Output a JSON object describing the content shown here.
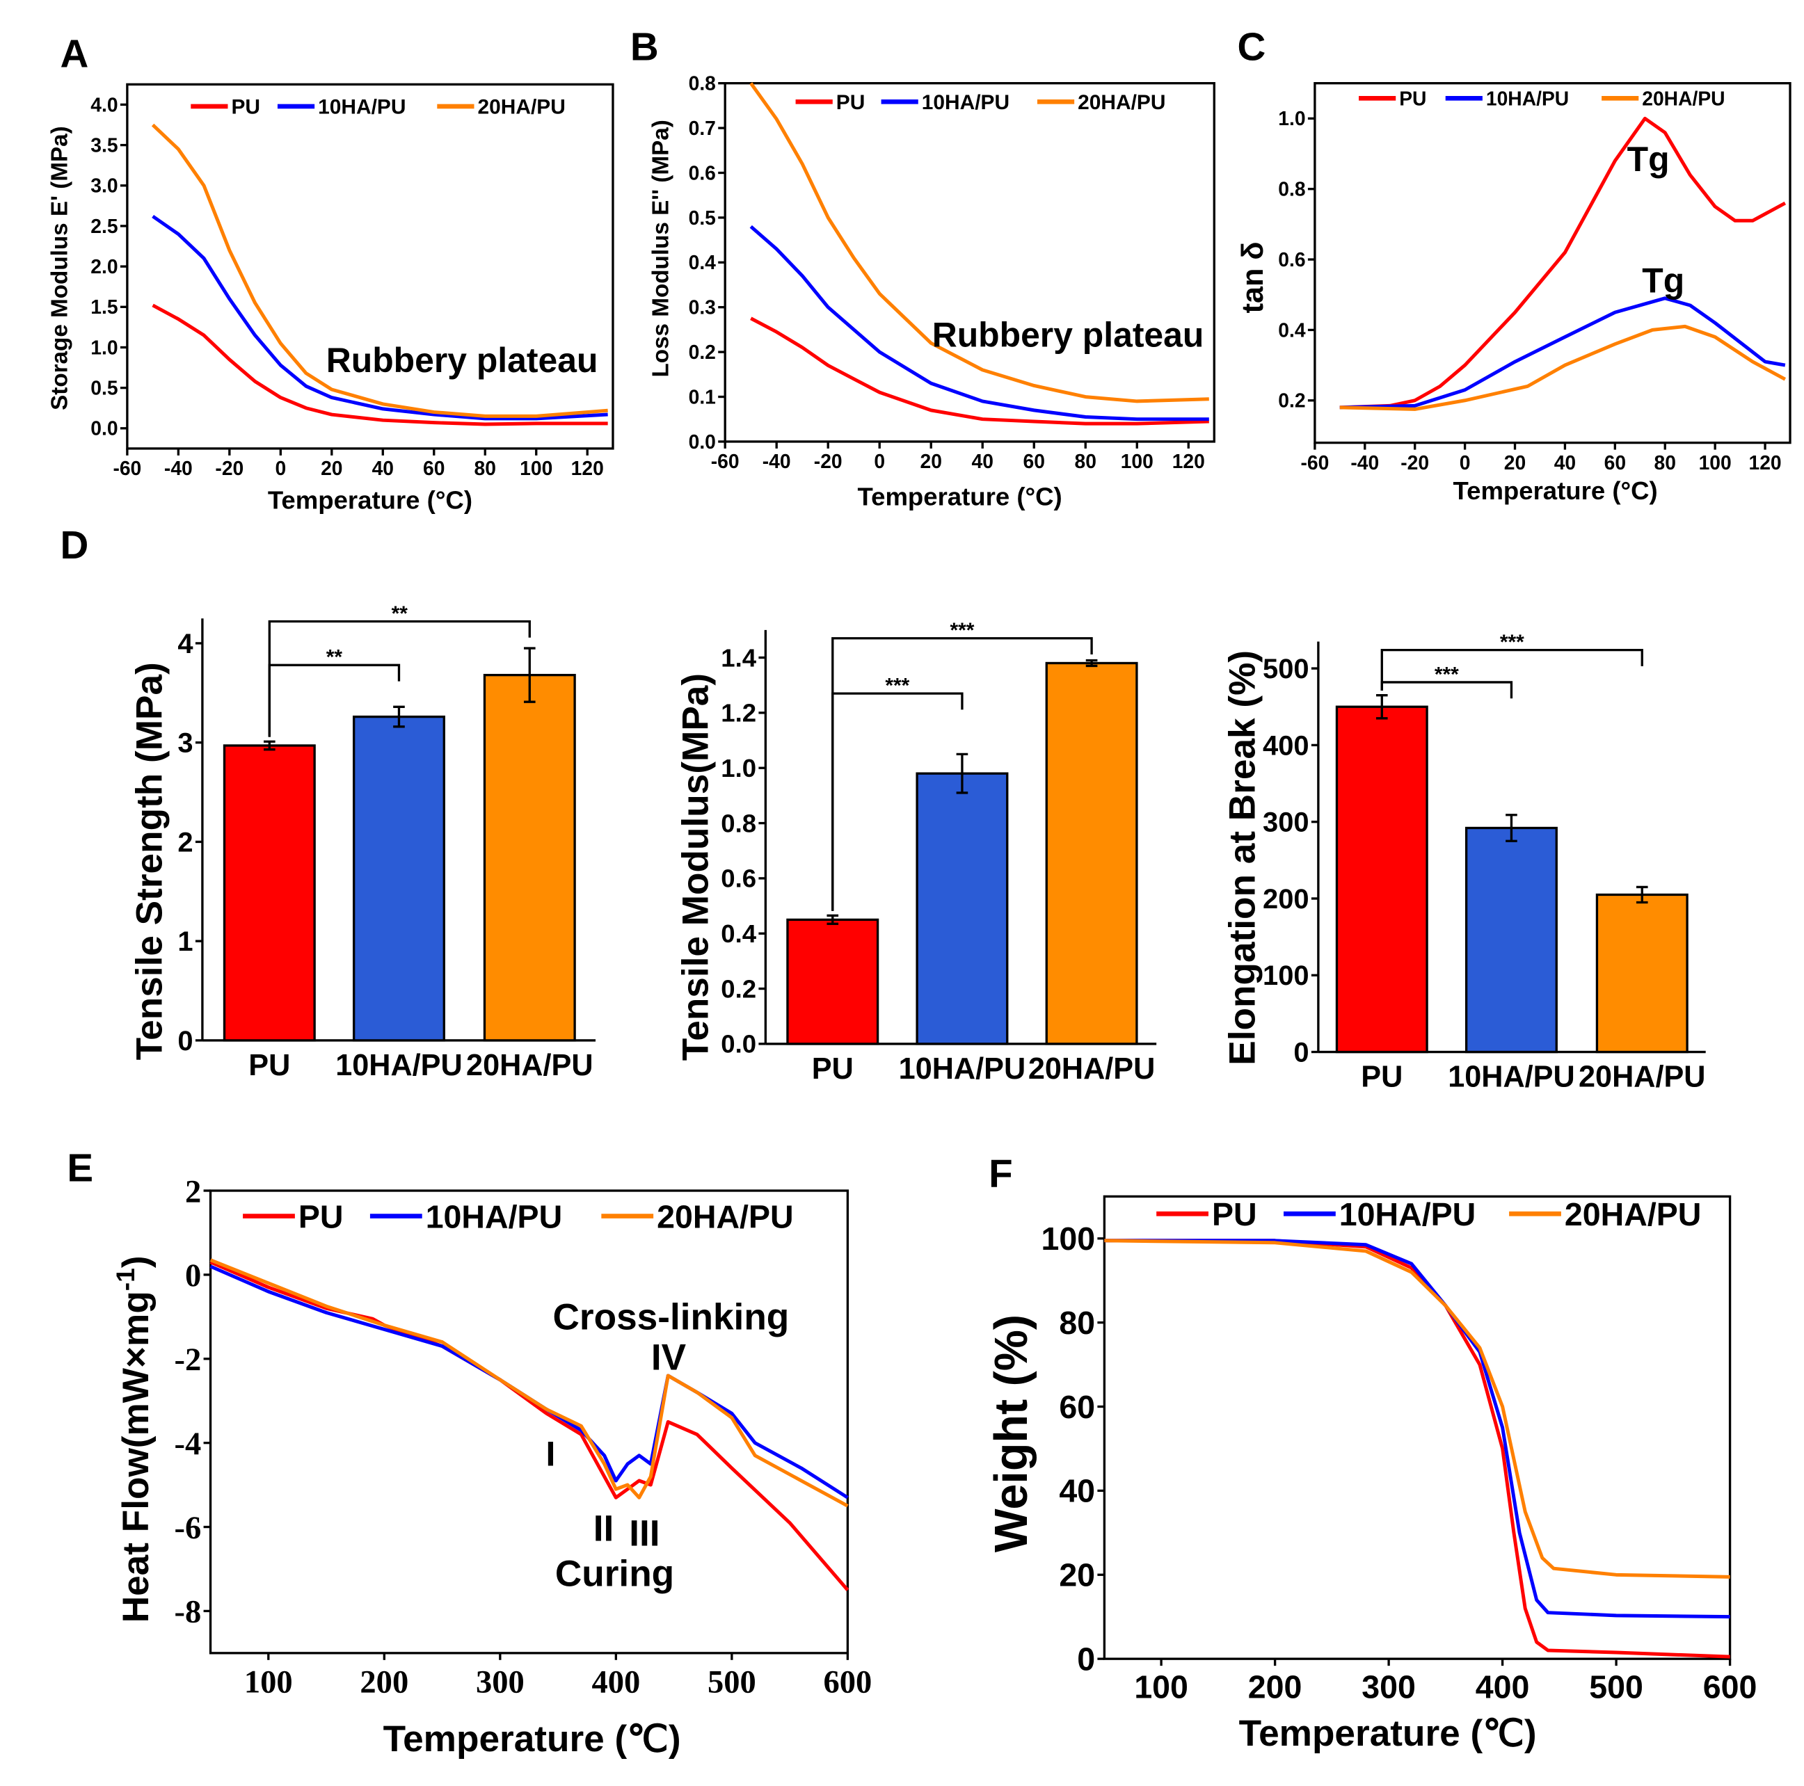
{
  "panel_labels": [
    "A",
    "B",
    "C",
    "D",
    "E",
    "F"
  ],
  "colors": {
    "PU": "#ff0000",
    "10HA/PU": "#0000ff",
    "20HA/PU": "#ff8000",
    "bar_PU": "#ff0000",
    "bar_10HA/PU": "#2b5cd6",
    "bar_20HA/PU": "#ff8c00"
  },
  "chart_data": [
    {
      "panel": "A",
      "type": "line",
      "xlabel": "Temperature (°C)",
      "ylabel": "Storage Modulus E' (MPa)",
      "xlim": [
        -60,
        130
      ],
      "ylim": [
        -0.25,
        4.25
      ],
      "xticks": [
        -60,
        -40,
        -20,
        0,
        20,
        40,
        60,
        80,
        100,
        120
      ],
      "xtick_labels": [
        "-60",
        "-40",
        "-20",
        "0",
        "20",
        "40",
        "60",
        "80",
        "100",
        "120"
      ],
      "yticks": [
        0,
        0.5,
        1,
        1.5,
        2,
        2.5,
        3,
        3.5,
        4
      ],
      "ytick_labels": [
        "0.0",
        "0.5",
        "1.0",
        "1.5",
        "2.0",
        "2.5",
        "3.0",
        "3.5",
        "4.0"
      ],
      "legend": "top",
      "grid": false,
      "annotations": [
        "Rubbery plateau"
      ],
      "series": [
        {
          "name": "PU",
          "x": [
            -50,
            -40,
            -30,
            -20,
            -10,
            0,
            10,
            20,
            40,
            60,
            80,
            100,
            128
          ],
          "y": [
            1.52,
            1.35,
            1.15,
            0.85,
            0.58,
            0.38,
            0.25,
            0.17,
            0.1,
            0.07,
            0.05,
            0.06,
            0.06
          ]
        },
        {
          "name": "10HA/PU",
          "x": [
            -50,
            -40,
            -30,
            -20,
            -10,
            0,
            10,
            20,
            40,
            60,
            80,
            100,
            128
          ],
          "y": [
            2.62,
            2.4,
            2.1,
            1.6,
            1.15,
            0.78,
            0.52,
            0.38,
            0.24,
            0.17,
            0.12,
            0.12,
            0.17
          ]
        },
        {
          "name": "20HA/PU",
          "x": [
            -50,
            -40,
            -30,
            -20,
            -10,
            0,
            10,
            20,
            40,
            60,
            80,
            100,
            128
          ],
          "y": [
            3.75,
            3.45,
            3.0,
            2.2,
            1.55,
            1.05,
            0.68,
            0.48,
            0.3,
            0.2,
            0.15,
            0.15,
            0.22
          ]
        }
      ]
    },
    {
      "panel": "B",
      "type": "line",
      "xlabel": "Temperature (°C)",
      "ylabel": "Loss Modulus E'' (MPa)",
      "xlim": [
        -60,
        130
      ],
      "ylim": [
        0,
        0.8
      ],
      "xticks": [
        -60,
        -40,
        -20,
        0,
        20,
        40,
        60,
        80,
        100,
        120
      ],
      "xtick_labels": [
        "-60",
        "-40",
        "-20",
        "0",
        "20",
        "40",
        "60",
        "80",
        "100",
        "120"
      ],
      "yticks": [
        0,
        0.1,
        0.2,
        0.3,
        0.4,
        0.5,
        0.6,
        0.7,
        0.8
      ],
      "ytick_labels": [
        "0.0",
        "0.1",
        "0.2",
        "0.3",
        "0.4",
        "0.5",
        "0.6",
        "0.7",
        "0.8"
      ],
      "legend": "top",
      "grid": false,
      "annotations": [
        "Rubbery plateau"
      ],
      "series": [
        {
          "name": "PU",
          "x": [
            -50,
            -40,
            -30,
            -20,
            -10,
            0,
            20,
            40,
            60,
            80,
            100,
            128
          ],
          "y": [
            0.275,
            0.245,
            0.21,
            0.17,
            0.14,
            0.11,
            0.07,
            0.05,
            0.045,
            0.04,
            0.04,
            0.045
          ]
        },
        {
          "name": "10HA/PU",
          "x": [
            -50,
            -40,
            -30,
            -20,
            -10,
            0,
            20,
            40,
            60,
            80,
            100,
            128
          ],
          "y": [
            0.48,
            0.43,
            0.37,
            0.3,
            0.25,
            0.2,
            0.13,
            0.09,
            0.07,
            0.055,
            0.05,
            0.05
          ]
        },
        {
          "name": "20HA/PU",
          "x": [
            -50,
            -40,
            -30,
            -20,
            -10,
            0,
            20,
            40,
            60,
            80,
            100,
            128
          ],
          "y": [
            0.8,
            0.72,
            0.62,
            0.5,
            0.41,
            0.33,
            0.22,
            0.16,
            0.125,
            0.1,
            0.09,
            0.095
          ]
        }
      ]
    },
    {
      "panel": "C",
      "type": "line",
      "xlabel": "Temperature (°C)",
      "ylabel": "tan δ",
      "xlim": [
        -60,
        130
      ],
      "ylim": [
        0.08,
        1.1
      ],
      "xticks": [
        -60,
        -40,
        -20,
        0,
        20,
        40,
        60,
        80,
        100,
        120
      ],
      "xtick_labels": [
        "-60",
        "-40",
        "-20",
        "0",
        "20",
        "40",
        "60",
        "80",
        "100",
        "120"
      ],
      "yticks": [
        0.2,
        0.4,
        0.6,
        0.8,
        1.0
      ],
      "ytick_labels": [
        "0.2",
        "0.4",
        "0.6",
        "0.8",
        "1.0"
      ],
      "legend": "top",
      "grid": false,
      "annotations": [
        "Tg",
        "Tg"
      ],
      "series": [
        {
          "name": "PU",
          "x": [
            -50,
            -30,
            -20,
            -10,
            0,
            20,
            40,
            60,
            72,
            80,
            90,
            100,
            108,
            115,
            128
          ],
          "y": [
            0.18,
            0.185,
            0.2,
            0.24,
            0.3,
            0.45,
            0.62,
            0.88,
            1.0,
            0.96,
            0.84,
            0.75,
            0.71,
            0.71,
            0.76
          ]
        },
        {
          "name": "10HA/PU",
          "x": [
            -50,
            -20,
            0,
            20,
            40,
            60,
            80,
            90,
            100,
            120,
            128
          ],
          "y": [
            0.18,
            0.185,
            0.23,
            0.31,
            0.38,
            0.45,
            0.49,
            0.47,
            0.42,
            0.31,
            0.3
          ]
        },
        {
          "name": "20HA/PU",
          "x": [
            -50,
            -20,
            0,
            25,
            40,
            60,
            75,
            88,
            100,
            115,
            128
          ],
          "y": [
            0.18,
            0.175,
            0.2,
            0.24,
            0.3,
            0.36,
            0.4,
            0.41,
            0.38,
            0.31,
            0.26
          ]
        }
      ]
    },
    {
      "panel": "D",
      "type": "bar",
      "ylabel": "Tensile Strength (MPa)",
      "ylim": [
        0,
        4.25
      ],
      "yticks": [
        0,
        1,
        2,
        3,
        4
      ],
      "ytick_labels": [
        "0",
        "1",
        "2",
        "3",
        "4"
      ],
      "categories": [
        "PU",
        "10HA/PU",
        "20HA/PU"
      ],
      "values": [
        2.97,
        3.26,
        3.68
      ],
      "errors": [
        0.04,
        0.1,
        0.27
      ],
      "significance": [
        {
          "from": 0,
          "to": 2,
          "label": "**",
          "level": 4.22
        },
        {
          "from": 0,
          "to": 1,
          "label": "**",
          "level": 3.78
        }
      ]
    },
    {
      "panel": "D",
      "type": "bar",
      "ylabel": "Tensile Modulus(MPa)",
      "ylim": [
        0,
        1.5
      ],
      "yticks": [
        0,
        0.2,
        0.4,
        0.6,
        0.8,
        1.0,
        1.2,
        1.4
      ],
      "ytick_labels": [
        "0.0",
        "0.2",
        "0.4",
        "0.6",
        "0.8",
        "1.0",
        "1.2",
        "1.4"
      ],
      "categories": [
        "PU",
        "10HA/PU",
        "20HA/PU"
      ],
      "values": [
        0.45,
        0.98,
        1.38
      ],
      "errors": [
        0.015,
        0.07,
        0.01
      ],
      "significance": [
        {
          "from": 0,
          "to": 2,
          "label": "***",
          "level": 1.47
        },
        {
          "from": 0,
          "to": 1,
          "label": "***",
          "level": 1.27
        }
      ]
    },
    {
      "panel": "D",
      "type": "bar",
      "ylabel": "Elongation at Break (%)",
      "ylim": [
        0,
        535
      ],
      "yticks": [
        0,
        100,
        200,
        300,
        400,
        500
      ],
      "ytick_labels": [
        "0",
        "100",
        "200",
        "300",
        "400",
        "500"
      ],
      "categories": [
        "PU",
        "10HA/PU",
        "20HA/PU"
      ],
      "values": [
        450,
        292,
        205
      ],
      "errors": [
        15,
        17,
        10
      ],
      "significance": [
        {
          "from": 0,
          "to": 2,
          "label": "***",
          "level": 524
        },
        {
          "from": 0,
          "to": 1,
          "label": "***",
          "level": 482
        }
      ]
    },
    {
      "panel": "E",
      "type": "line",
      "xlabel": "Temperature (℃)",
      "ylabel": "Heat Flow(mW×mg",
      "ylabel_sup": "-1",
      "ylabel_end": ")",
      "xlim": [
        50,
        600
      ],
      "ylim": [
        -9,
        2
      ],
      "xticks": [
        100,
        200,
        300,
        400,
        500,
        600
      ],
      "xtick_labels": [
        "100",
        "200",
        "300",
        "400",
        "500",
        "600"
      ],
      "yticks": [
        -8,
        -6,
        -4,
        -2,
        0,
        2
      ],
      "ytick_labels": [
        "-8",
        "-6",
        "-4",
        "-2",
        "0",
        "2"
      ],
      "legend": "top",
      "grid": false,
      "annotations": [
        "Cross-linking",
        "IV",
        "I",
        "II",
        "III",
        "Curing"
      ],
      "series": [
        {
          "name": "PU",
          "x": [
            50,
            100,
            150,
            190,
            200,
            250,
            300,
            340,
            370,
            390,
            400,
            410,
            420,
            430,
            445,
            470,
            500,
            550,
            600
          ],
          "y": [
            0.3,
            -0.3,
            -0.8,
            -1.05,
            -1.2,
            -1.7,
            -2.5,
            -3.3,
            -3.8,
            -4.8,
            -5.3,
            -5.1,
            -4.9,
            -5.0,
            -3.5,
            -3.8,
            -4.6,
            -5.9,
            -7.5
          ]
        },
        {
          "name": "10HA/PU",
          "x": [
            50,
            100,
            150,
            200,
            250,
            300,
            340,
            370,
            390,
            400,
            410,
            420,
            430,
            445,
            470,
            500,
            520,
            560,
            600
          ],
          "y": [
            0.2,
            -0.4,
            -0.9,
            -1.3,
            -1.7,
            -2.5,
            -3.2,
            -3.7,
            -4.3,
            -4.9,
            -4.5,
            -4.3,
            -4.5,
            -2.4,
            -2.8,
            -3.3,
            -4.0,
            -4.6,
            -5.3
          ]
        },
        {
          "name": "20HA/PU",
          "x": [
            50,
            100,
            150,
            200,
            250,
            300,
            340,
            370,
            390,
            400,
            410,
            420,
            430,
            445,
            470,
            500,
            520,
            560,
            600
          ],
          "y": [
            0.35,
            -0.2,
            -0.75,
            -1.2,
            -1.6,
            -2.5,
            -3.2,
            -3.6,
            -4.5,
            -5.1,
            -5.0,
            -5.3,
            -4.8,
            -2.4,
            -2.8,
            -3.4,
            -4.3,
            -4.9,
            -5.5
          ]
        }
      ]
    },
    {
      "panel": "F",
      "type": "line",
      "xlabel": "Temperature (℃)",
      "ylabel": "Weight (%)",
      "xlim": [
        50,
        600
      ],
      "ylim": [
        0,
        110
      ],
      "xticks": [
        100,
        200,
        300,
        400,
        500,
        600
      ],
      "xtick_labels": [
        "100",
        "200",
        "300",
        "400",
        "500",
        "600"
      ],
      "yticks": [
        0,
        20,
        40,
        60,
        80,
        100
      ],
      "ytick_labels": [
        "0",
        "20",
        "40",
        "60",
        "80",
        "100"
      ],
      "legend": "top",
      "grid": false,
      "annotations": [],
      "series": [
        {
          "name": "PU",
          "x": [
            50,
            200,
            280,
            320,
            350,
            380,
            400,
            410,
            420,
            430,
            440,
            500,
            600
          ],
          "y": [
            99.5,
            99.5,
            98,
            93,
            84,
            70,
            50,
            30,
            12,
            4,
            2,
            1.5,
            0.5
          ]
        },
        {
          "name": "10HA/PU",
          "x": [
            50,
            200,
            280,
            320,
            350,
            380,
            400,
            415,
            430,
            440,
            500,
            600
          ],
          "y": [
            99.5,
            99.5,
            98.5,
            94,
            84,
            73,
            55,
            30,
            14,
            11,
            10.3,
            10
          ]
        },
        {
          "name": "20HA/PU",
          "x": [
            50,
            200,
            280,
            320,
            350,
            380,
            400,
            420,
            435,
            445,
            500,
            600
          ],
          "y": [
            99.5,
            99,
            97,
            92,
            84,
            74,
            60,
            35,
            24,
            21.5,
            20,
            19.5
          ]
        }
      ]
    }
  ]
}
